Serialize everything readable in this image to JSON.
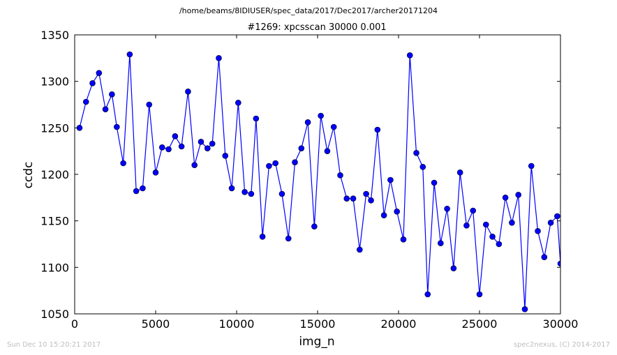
{
  "header": {
    "path": "/home/beams/8IDIUSER/spec_data/2017/Dec2017/archer20171204"
  },
  "footer": {
    "timestamp": "Sun Dec 10 15:20:21 2017",
    "credit": "spec2nexus, (C) 2014-2017"
  },
  "chart_data": {
    "type": "line",
    "title": "#1269: xpcsscan 30000 0.001",
    "xlabel": "img_n",
    "ylabel": "ccdc",
    "xlim": [
      0,
      30000
    ],
    "ylim": [
      1050,
      1350
    ],
    "xticks": [
      "0",
      "5000",
      "10000",
      "15000",
      "20000",
      "25000",
      "30000"
    ],
    "yticks": [
      "1050",
      "1100",
      "1150",
      "1200",
      "1250",
      "1300",
      "1350"
    ],
    "grid": false,
    "marker": "circle",
    "color": "#0000ff",
    "series": [
      {
        "x": [
          300,
          700,
          1100,
          1500,
          1900,
          2300,
          2600,
          3000,
          3400,
          3800,
          4200,
          4600,
          5000,
          5400,
          5800,
          6200,
          6600,
          7000,
          7400,
          7800,
          8200,
          8500,
          8900,
          9300,
          9700,
          10100,
          10500,
          10900,
          11200,
          11600,
          12000,
          12400,
          12800,
          13200,
          13600,
          14000,
          14400,
          14800,
          15200,
          15600,
          16000,
          16400,
          16800,
          17200,
          17600,
          18000,
          18300,
          18700,
          19100,
          19500,
          19900,
          20300,
          20700,
          21100,
          21500,
          21800,
          22200,
          22600,
          23000,
          23400,
          23800,
          24200,
          24600,
          25000,
          25400,
          25800,
          26200,
          26600,
          27000,
          27400,
          27800,
          28200,
          28600,
          29000,
          29400,
          29800,
          30000
        ],
        "y": [
          1250,
          1278,
          1298,
          1309,
          1270,
          1286,
          1251,
          1212,
          1329,
          1182,
          1185,
          1275,
          1202,
          1229,
          1227,
          1241,
          1230,
          1289,
          1210,
          1235,
          1228,
          1233,
          1325,
          1220,
          1185,
          1277,
          1181,
          1179,
          1260,
          1133,
          1209,
          1212,
          1179,
          1131,
          1213,
          1228,
          1256,
          1144,
          1263,
          1225,
          1251,
          1199,
          1174,
          1174,
          1119,
          1179,
          1172,
          1248,
          1156,
          1194,
          1160,
          1130,
          1328,
          1223,
          1208,
          1071,
          1191,
          1126,
          1163,
          1099,
          1202,
          1145,
          1161,
          1071,
          1146,
          1133,
          1125,
          1175,
          1148,
          1178,
          1055,
          1209,
          1139,
          1111,
          1148,
          1155,
          1104
        ]
      }
    ]
  }
}
